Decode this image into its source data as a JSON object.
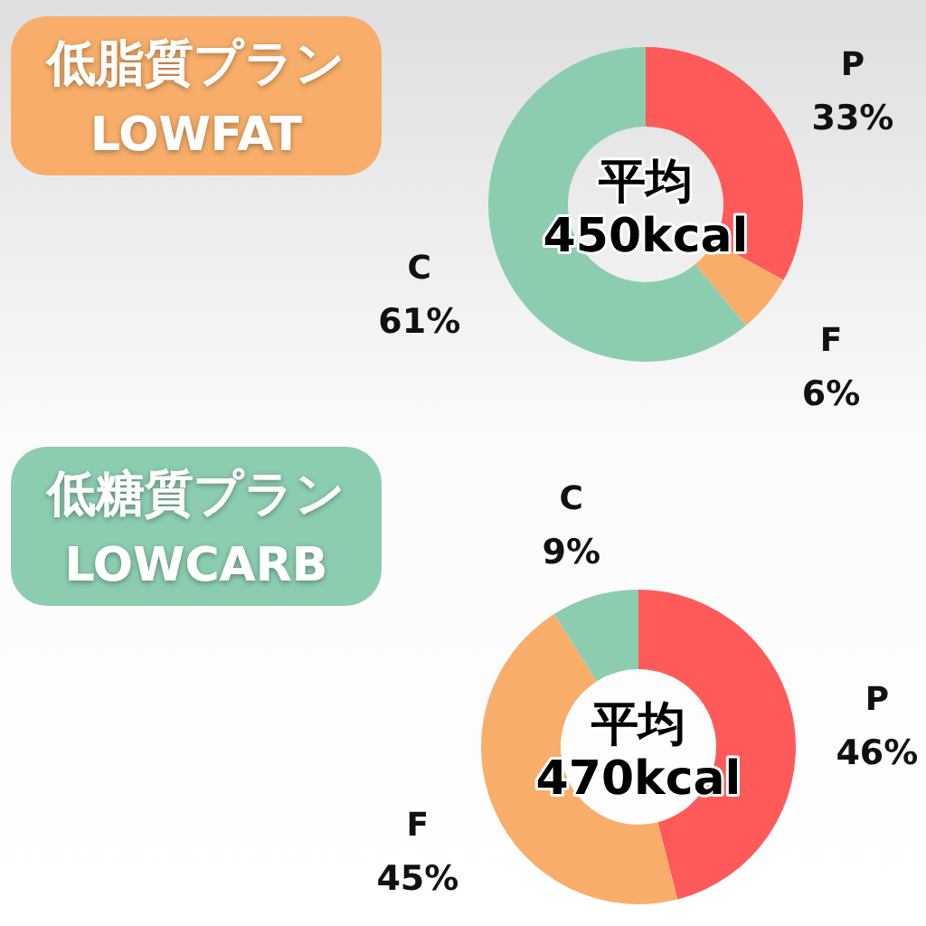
{
  "chart_data": [
    {
      "type": "donut",
      "title": "低脂質プラン",
      "subtitle": "LOWFAT",
      "categories": [
        "P",
        "F",
        "C"
      ],
      "values": [
        33,
        6,
        61
      ],
      "colors": [
        "#ff5a5a",
        "#f8ae6a",
        "#8ccdb0"
      ],
      "value_labels": [
        "33%",
        "6%",
        "61%"
      ],
      "annotations": [
        "平均",
        "450kcal"
      ]
    },
    {
      "type": "donut",
      "title": "低糖質プラン",
      "subtitle": "LOWCARB",
      "categories": [
        "P",
        "F",
        "C"
      ],
      "values": [
        46,
        45,
        9
      ],
      "colors": [
        "#ff5a5a",
        "#f8ae6a",
        "#8ccdb0"
      ],
      "value_labels": [
        "46%",
        "45%",
        "9%"
      ],
      "annotations": [
        "平均",
        "470kcal"
      ]
    }
  ]
}
